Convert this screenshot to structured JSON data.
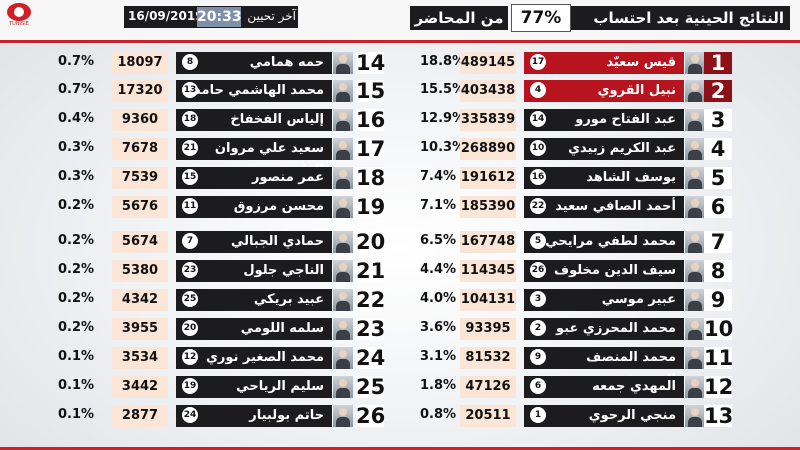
{
  "header": {
    "title_part1": "النتائج الحينية بعد احتساب",
    "title_percent": "77%",
    "title_part2": "من المحاضر",
    "date": "16/09/2019",
    "time": "20:33",
    "update_label": "آخر تحيين"
  },
  "logo": {
    "text": "TUNISIE",
    "icon": "isie-logo"
  },
  "colors": {
    "red": "#c8212a",
    "dark": "#1c1c1e",
    "vote_bg": "#fbe5d6"
  },
  "candidates_right": [
    {
      "rank": "1",
      "name": "قيس سعيّد",
      "number": "17",
      "votes": "489145",
      "percent": "18.8%"
    },
    {
      "rank": "2",
      "name": "نبيل القروي",
      "number": "4",
      "votes": "403438",
      "percent": "15.5%"
    },
    {
      "rank": "3",
      "name": "عبد الفتاح مورو",
      "number": "14",
      "votes": "335839",
      "percent": "12.9%"
    },
    {
      "rank": "4",
      "name": "عبد الكريم زبيدي",
      "number": "10",
      "votes": "268890",
      "percent": "10.3%"
    },
    {
      "rank": "5",
      "name": "يوسف الشاهد",
      "number": "16",
      "votes": "191612",
      "percent": "7.4%"
    },
    {
      "rank": "6",
      "name": "أحمد الصافي سعيد",
      "number": "22",
      "votes": "185390",
      "percent": "7.1%"
    },
    {
      "rank": "7",
      "name": "محمد لطفي مرايحي",
      "number": "5",
      "votes": "167748",
      "percent": "6.5%"
    },
    {
      "rank": "8",
      "name": "سيف الدين مخلوف",
      "number": "26",
      "votes": "114345",
      "percent": "4.4%"
    },
    {
      "rank": "9",
      "name": "عبير موسي",
      "number": "3",
      "votes": "104131",
      "percent": "4.0%"
    },
    {
      "rank": "10",
      "name": "محمد المحرزي عبو",
      "number": "2",
      "votes": "93395",
      "percent": "3.6%"
    },
    {
      "rank": "11",
      "name": "محمد المنصف المرزوقي",
      "number": "9",
      "votes": "81532",
      "percent": "3.1%"
    },
    {
      "rank": "12",
      "name": "المهدي جمعه",
      "number": "6",
      "votes": "47126",
      "percent": "1.8%"
    },
    {
      "rank": "13",
      "name": "منجي الرحوي",
      "number": "1",
      "votes": "20511",
      "percent": "0.8%"
    }
  ],
  "candidates_left": [
    {
      "rank": "14",
      "name": "حمه همامي",
      "number": "8",
      "votes": "18097",
      "percent": "0.7%"
    },
    {
      "rank": "15",
      "name": "محمد الهاشمي حامدي",
      "number": "13",
      "votes": "17320",
      "percent": "0.7%"
    },
    {
      "rank": "16",
      "name": "إلياس الفخفاخ",
      "number": "18",
      "votes": "9360",
      "percent": "0.4%"
    },
    {
      "rank": "17",
      "name": "سعيد علي مروان العايدي",
      "number": "21",
      "votes": "7678",
      "percent": "0.3%"
    },
    {
      "rank": "18",
      "name": "عمر منصور",
      "number": "15",
      "votes": "7539",
      "percent": "0.3%"
    },
    {
      "rank": "19",
      "name": "محسن مرزوق",
      "number": "11",
      "votes": "5676",
      "percent": "0.2%"
    },
    {
      "rank": "20",
      "name": "حمادي الجبالي",
      "number": "7",
      "votes": "5674",
      "percent": "0.2%"
    },
    {
      "rank": "21",
      "name": "الناجي جلول",
      "number": "23",
      "votes": "5380",
      "percent": "0.2%"
    },
    {
      "rank": "22",
      "name": "عبيد بريكي",
      "number": "25",
      "votes": "4342",
      "percent": "0.2%"
    },
    {
      "rank": "23",
      "name": "سلمه اللومي",
      "number": "20",
      "votes": "3955",
      "percent": "0.2%"
    },
    {
      "rank": "24",
      "name": "محمد الصغير نوري",
      "number": "12",
      "votes": "3534",
      "percent": "0.1%"
    },
    {
      "rank": "25",
      "name": "سليم الرياحي",
      "number": "19",
      "votes": "3442",
      "percent": "0.1%"
    },
    {
      "rank": "26",
      "name": "حاتم بولبيار",
      "number": "24",
      "votes": "2877",
      "percent": "0.1%"
    }
  ]
}
